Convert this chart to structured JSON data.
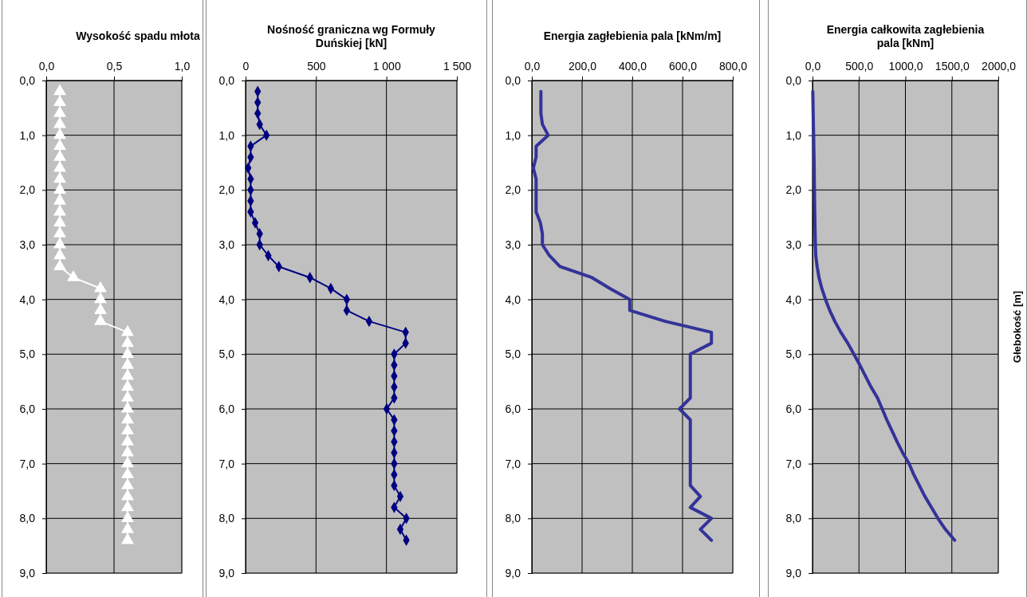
{
  "chart_data": [
    {
      "type": "line",
      "title": "Wysokość spadu młota",
      "xlim": [
        0,
        1
      ],
      "xticks": [
        {
          "value": 0,
          "label": "0,0"
        },
        {
          "value": 0.5,
          "label": "0,5"
        },
        {
          "value": 1,
          "label": "1,0"
        }
      ],
      "ylim": [
        9,
        0
      ],
      "yticks": [
        {
          "value": 0,
          "label": "0,0"
        },
        {
          "value": 1,
          "label": "1,0"
        },
        {
          "value": 2,
          "label": "2,0"
        },
        {
          "value": 3,
          "label": "3,0"
        },
        {
          "value": 4,
          "label": "4,0"
        },
        {
          "value": 5,
          "label": "5,0"
        },
        {
          "value": 6,
          "label": "6,0"
        },
        {
          "value": 7,
          "label": "7,0"
        },
        {
          "value": 8,
          "label": "8,0"
        },
        {
          "value": 9,
          "label": "9,0"
        }
      ],
      "grid": true,
      "marker": "triangle",
      "line_style": "solid",
      "series": [
        {
          "color": "#ffffff",
          "x": [
            0.1,
            0.1,
            0.1,
            0.1,
            0.1,
            0.1,
            0.1,
            0.1,
            0.1,
            0.1,
            0.1,
            0.1,
            0.1,
            0.1,
            0.1,
            0.1,
            0.1,
            0.2,
            0.4,
            0.4,
            0.4,
            0.4,
            0.6,
            0.6,
            0.6,
            0.6,
            0.6,
            0.6,
            0.6,
            0.6,
            0.6,
            0.6,
            0.6,
            0.6,
            0.6,
            0.6,
            0.6,
            0.6,
            0.6,
            0.6,
            0.6,
            0.6
          ],
          "values": [
            0.2,
            0.4,
            0.6,
            0.8,
            1.0,
            1.2,
            1.4,
            1.6,
            1.8,
            2.0,
            2.2,
            2.4,
            2.6,
            2.8,
            3.0,
            3.2,
            3.4,
            3.6,
            3.8,
            4.0,
            4.2,
            4.4,
            4.6,
            4.8,
            5.0,
            5.2,
            5.4,
            5.6,
            5.8,
            6.0,
            6.2,
            6.4,
            6.6,
            6.8,
            7.0,
            7.2,
            7.4,
            7.6,
            7.8,
            8.0,
            8.2,
            8.4
          ]
        }
      ]
    },
    {
      "type": "line",
      "title": "Nośność graniczna wg  Formuły\nDuńskiej [kN]",
      "xlim": [
        0,
        1500
      ],
      "xticks": [
        {
          "value": 0,
          "label": "0"
        },
        {
          "value": 500,
          "label": "500"
        },
        {
          "value": 1000,
          "label": "1 000"
        },
        {
          "value": 1500,
          "label": "1 500"
        }
      ],
      "ylim": [
        9,
        0
      ],
      "yticks": [
        {
          "value": 0,
          "label": "0,0"
        },
        {
          "value": 1,
          "label": "1,0"
        },
        {
          "value": 2,
          "label": "2,0"
        },
        {
          "value": 3,
          "label": "3,0"
        },
        {
          "value": 4,
          "label": "4,0"
        },
        {
          "value": 5,
          "label": "5,0"
        },
        {
          "value": 6,
          "label": "6,0"
        },
        {
          "value": 7,
          "label": "7,0"
        },
        {
          "value": 8,
          "label": "8,0"
        },
        {
          "value": 9,
          "label": "9,0"
        }
      ],
      "grid": true,
      "marker": "diamond",
      "line_style": "solid",
      "series": [
        {
          "color": "#000080",
          "x": [
            86,
            86,
            86,
            100,
            148,
            36,
            36,
            18,
            36,
            36,
            36,
            36,
            68,
            100,
            100,
            161,
            236,
            457,
            605,
            718,
            718,
            877,
            1136,
            1136,
            1055,
            1055,
            1055,
            1055,
            1055,
            1002,
            1055,
            1055,
            1055,
            1055,
            1055,
            1055,
            1055,
            1098,
            1055,
            1141,
            1098,
            1141
          ],
          "values": [
            0.2,
            0.4,
            0.6,
            0.8,
            1.0,
            1.2,
            1.4,
            1.6,
            1.8,
            2.0,
            2.2,
            2.4,
            2.6,
            2.8,
            3.0,
            3.2,
            3.4,
            3.6,
            3.8,
            4.0,
            4.2,
            4.4,
            4.6,
            4.8,
            5.0,
            5.2,
            5.4,
            5.6,
            5.8,
            6.0,
            6.2,
            6.4,
            6.6,
            6.8,
            7.0,
            7.2,
            7.4,
            7.6,
            7.8,
            8.0,
            8.2,
            8.4
          ]
        }
      ]
    },
    {
      "type": "line",
      "title": "Energia zagłebienia pala [kNm/m]",
      "xlim": [
        0,
        800
      ],
      "xticks": [
        {
          "value": 0,
          "label": "0,0"
        },
        {
          "value": 200,
          "label": "200,0"
        },
        {
          "value": 400,
          "label": "400,0"
        },
        {
          "value": 600,
          "label": "600,0"
        },
        {
          "value": 800,
          "label": "800,0"
        }
      ],
      "ylim": [
        9,
        0
      ],
      "yticks": [
        {
          "value": 0,
          "label": "0,0"
        },
        {
          "value": 1,
          "label": "1,0"
        },
        {
          "value": 2,
          "label": "2,0"
        },
        {
          "value": 3,
          "label": "3,0"
        },
        {
          "value": 4,
          "label": "4,0"
        },
        {
          "value": 5,
          "label": "5,0"
        },
        {
          "value": 6,
          "label": "6,0"
        },
        {
          "value": 7,
          "label": "7,0"
        },
        {
          "value": 8,
          "label": "8,0"
        },
        {
          "value": 9,
          "label": "9,0"
        }
      ],
      "grid": true,
      "line_style": "solid",
      "series": [
        {
          "color": "#333399",
          "x": [
            36,
            36,
            36,
            42,
            65,
            17,
            17,
            6,
            17,
            17,
            17,
            17,
            34,
            42,
            42,
            70,
            112,
            239,
            311,
            390,
            390,
            531,
            715,
            715,
            631,
            631,
            631,
            631,
            631,
            588,
            631,
            631,
            631,
            631,
            631,
            631,
            631,
            671,
            631,
            715,
            671,
            715
          ],
          "values": [
            0.2,
            0.4,
            0.6,
            0.8,
            1.0,
            1.2,
            1.4,
            1.6,
            1.8,
            2.0,
            2.2,
            2.4,
            2.6,
            2.8,
            3.0,
            3.2,
            3.4,
            3.6,
            3.8,
            4.0,
            4.2,
            4.4,
            4.6,
            4.8,
            5.0,
            5.2,
            5.4,
            5.6,
            5.8,
            6.0,
            6.2,
            6.4,
            6.6,
            6.8,
            7.0,
            7.2,
            7.4,
            7.6,
            7.8,
            8.0,
            8.2,
            8.4
          ]
        }
      ]
    },
    {
      "type": "line",
      "title": "Energia całkowita zagłebienia\npala [kNm]",
      "ylabel": "Głebokość [m]",
      "xlim": [
        0,
        2000
      ],
      "xticks": [
        {
          "value": 0,
          "label": "0,0"
        },
        {
          "value": 500,
          "label": "500,0"
        },
        {
          "value": 1000,
          "label": "1000,0"
        },
        {
          "value": 1500,
          "label": "1500,0"
        },
        {
          "value": 2000,
          "label": "2000,0"
        }
      ],
      "ylim": [
        9,
        0
      ],
      "yticks": [
        {
          "value": 0,
          "label": "0,0"
        },
        {
          "value": 1,
          "label": "1,0"
        },
        {
          "value": 2,
          "label": "2,0"
        },
        {
          "value": 3,
          "label": "3,0"
        },
        {
          "value": 4,
          "label": "4,0"
        },
        {
          "value": 5,
          "label": "5,0"
        },
        {
          "value": 6,
          "label": "6,0"
        },
        {
          "value": 7,
          "label": "7,0"
        },
        {
          "value": 8,
          "label": "8,0"
        },
        {
          "value": 9,
          "label": "9,0"
        }
      ],
      "grid": true,
      "line_style": "solid",
      "series": [
        {
          "color": "#333399",
          "x": [
            3,
            5,
            7,
            9,
            12,
            14,
            16,
            18,
            19,
            21,
            22,
            24,
            26,
            28,
            31,
            35,
            50,
            70,
            100,
            140,
            185,
            240,
            305,
            380,
            445,
            510,
            570,
            630,
            700,
            750,
            800,
            855,
            910,
            970,
            1040,
            1090,
            1150,
            1210,
            1280,
            1350,
            1430,
            1530
          ],
          "values": [
            0.2,
            0.4,
            0.6,
            0.8,
            1.0,
            1.2,
            1.4,
            1.6,
            1.8,
            2.0,
            2.2,
            2.4,
            2.6,
            2.8,
            3.0,
            3.2,
            3.4,
            3.6,
            3.8,
            4.0,
            4.2,
            4.4,
            4.6,
            4.8,
            5.0,
            5.2,
            5.4,
            5.6,
            5.8,
            6.0,
            6.2,
            6.4,
            6.6,
            6.8,
            7.0,
            7.2,
            7.4,
            7.6,
            7.8,
            8.0,
            8.2,
            8.4
          ]
        }
      ]
    }
  ]
}
